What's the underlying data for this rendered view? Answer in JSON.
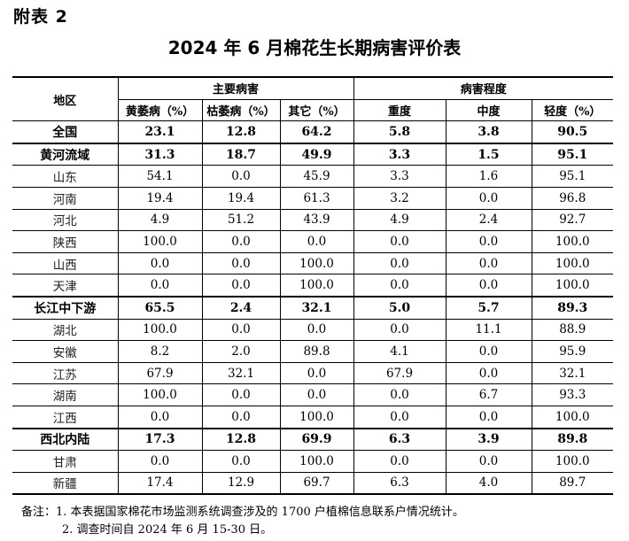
{
  "appendix_label": "附表 2",
  "title": "2024 年 6 月棉花生长期病害评价表",
  "headers": {
    "region": "地区",
    "group_main": "主要病害",
    "group_degree": "病害程度",
    "cols": [
      "黄萎病（%）",
      "枯萎病（%）",
      "其它（%）",
      "重度",
      "中度",
      "轻度（%）"
    ]
  },
  "rows": [
    {
      "region": "全国",
      "values": [
        "23.1",
        "12.8",
        "64.2",
        "5.8",
        "3.8",
        "90.5"
      ]
    },
    {
      "region": "黄河流域",
      "values": [
        "31.3",
        "18.7",
        "49.9",
        "3.3",
        "1.5",
        "95.1"
      ]
    },
    {
      "region": "山东",
      "values": [
        "54.1",
        "0.0",
        "45.9",
        "3.3",
        "1.6",
        "95.1"
      ]
    },
    {
      "region": "河南",
      "values": [
        "19.4",
        "19.4",
        "61.3",
        "3.2",
        "0.0",
        "96.8"
      ]
    },
    {
      "region": "河北",
      "values": [
        "4.9",
        "51.2",
        "43.9",
        "4.9",
        "2.4",
        "92.7"
      ]
    },
    {
      "region": "陕西",
      "values": [
        "100.0",
        "0.0",
        "0.0",
        "0.0",
        "0.0",
        "100.0"
      ]
    },
    {
      "region": "山西",
      "values": [
        "0.0",
        "0.0",
        "100.0",
        "0.0",
        "0.0",
        "100.0"
      ]
    },
    {
      "region": "天津",
      "values": [
        "0.0",
        "0.0",
        "100.0",
        "0.0",
        "0.0",
        "100.0"
      ]
    },
    {
      "region": "长江中下游",
      "values": [
        "65.5",
        "2.4",
        "32.1",
        "5.0",
        "5.7",
        "89.3"
      ]
    },
    {
      "region": "湖北",
      "values": [
        "100.0",
        "0.0",
        "0.0",
        "0.0",
        "11.1",
        "88.9"
      ]
    },
    {
      "region": "安徽",
      "values": [
        "8.2",
        "2.0",
        "89.8",
        "4.1",
        "0.0",
        "95.9"
      ]
    },
    {
      "region": "江苏",
      "values": [
        "67.9",
        "32.1",
        "0.0",
        "67.9",
        "0.0",
        "32.1"
      ]
    },
    {
      "region": "湖南",
      "values": [
        "100.0",
        "0.0",
        "0.0",
        "0.0",
        "6.7",
        "93.3"
      ]
    },
    {
      "region": "江西",
      "values": [
        "0.0",
        "0.0",
        "100.0",
        "0.0",
        "0.0",
        "100.0"
      ]
    },
    {
      "region": "西北内陆",
      "values": [
        "17.3",
        "12.8",
        "69.9",
        "6.3",
        "3.9",
        "89.8"
      ]
    },
    {
      "region": "甘肃",
      "values": [
        "0.0",
        "0.0",
        "100.0",
        "0.0",
        "0.0",
        "100.0"
      ]
    },
    {
      "region": "新疆",
      "values": [
        "17.4",
        "12.9",
        "69.7",
        "6.3",
        "4.0",
        "89.7"
      ]
    }
  ],
  "notes": [
    "备注：1. 本表据国家棉花市场监测系统调查涉及的 1700 户植棉信息联系户情况统计。",
    "2. 调查时间自 2024 年 6 月 15-30 日。"
  ]
}
